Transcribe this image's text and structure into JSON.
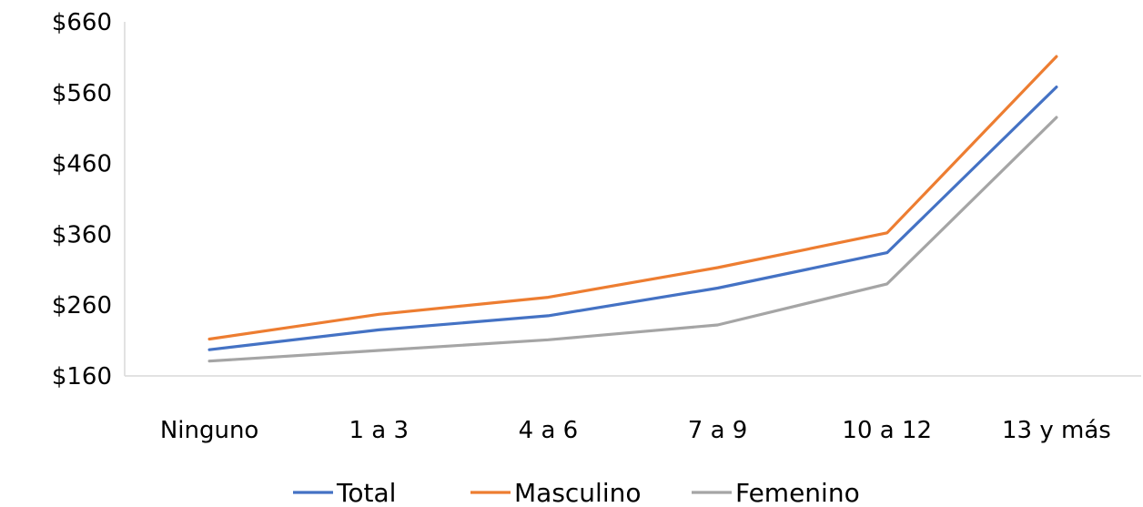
{
  "chart_data": {
    "type": "line",
    "title": "",
    "xlabel": "",
    "ylabel": "",
    "categories": [
      "Ninguno",
      "1 a 3",
      "4 a 6",
      "7 a 9",
      "10 a 12",
      "13 y más"
    ],
    "y_tick_labels": [
      "$160",
      "$260",
      "$360",
      "$460",
      "$560",
      "$660"
    ],
    "ylim": [
      160,
      660
    ],
    "grid": false,
    "legend_position": "bottom",
    "series": [
      {
        "name": "Total",
        "color": "#4472C4",
        "values": [
          197,
          225,
          245,
          284,
          334,
          568
        ]
      },
      {
        "name": "Masculino",
        "color": "#ED7D31",
        "values": [
          212,
          247,
          271,
          313,
          362,
          611
        ]
      },
      {
        "name": "Femenino",
        "color": "#A5A5A5",
        "values": [
          181,
          196,
          211,
          232,
          290,
          525
        ]
      }
    ]
  }
}
